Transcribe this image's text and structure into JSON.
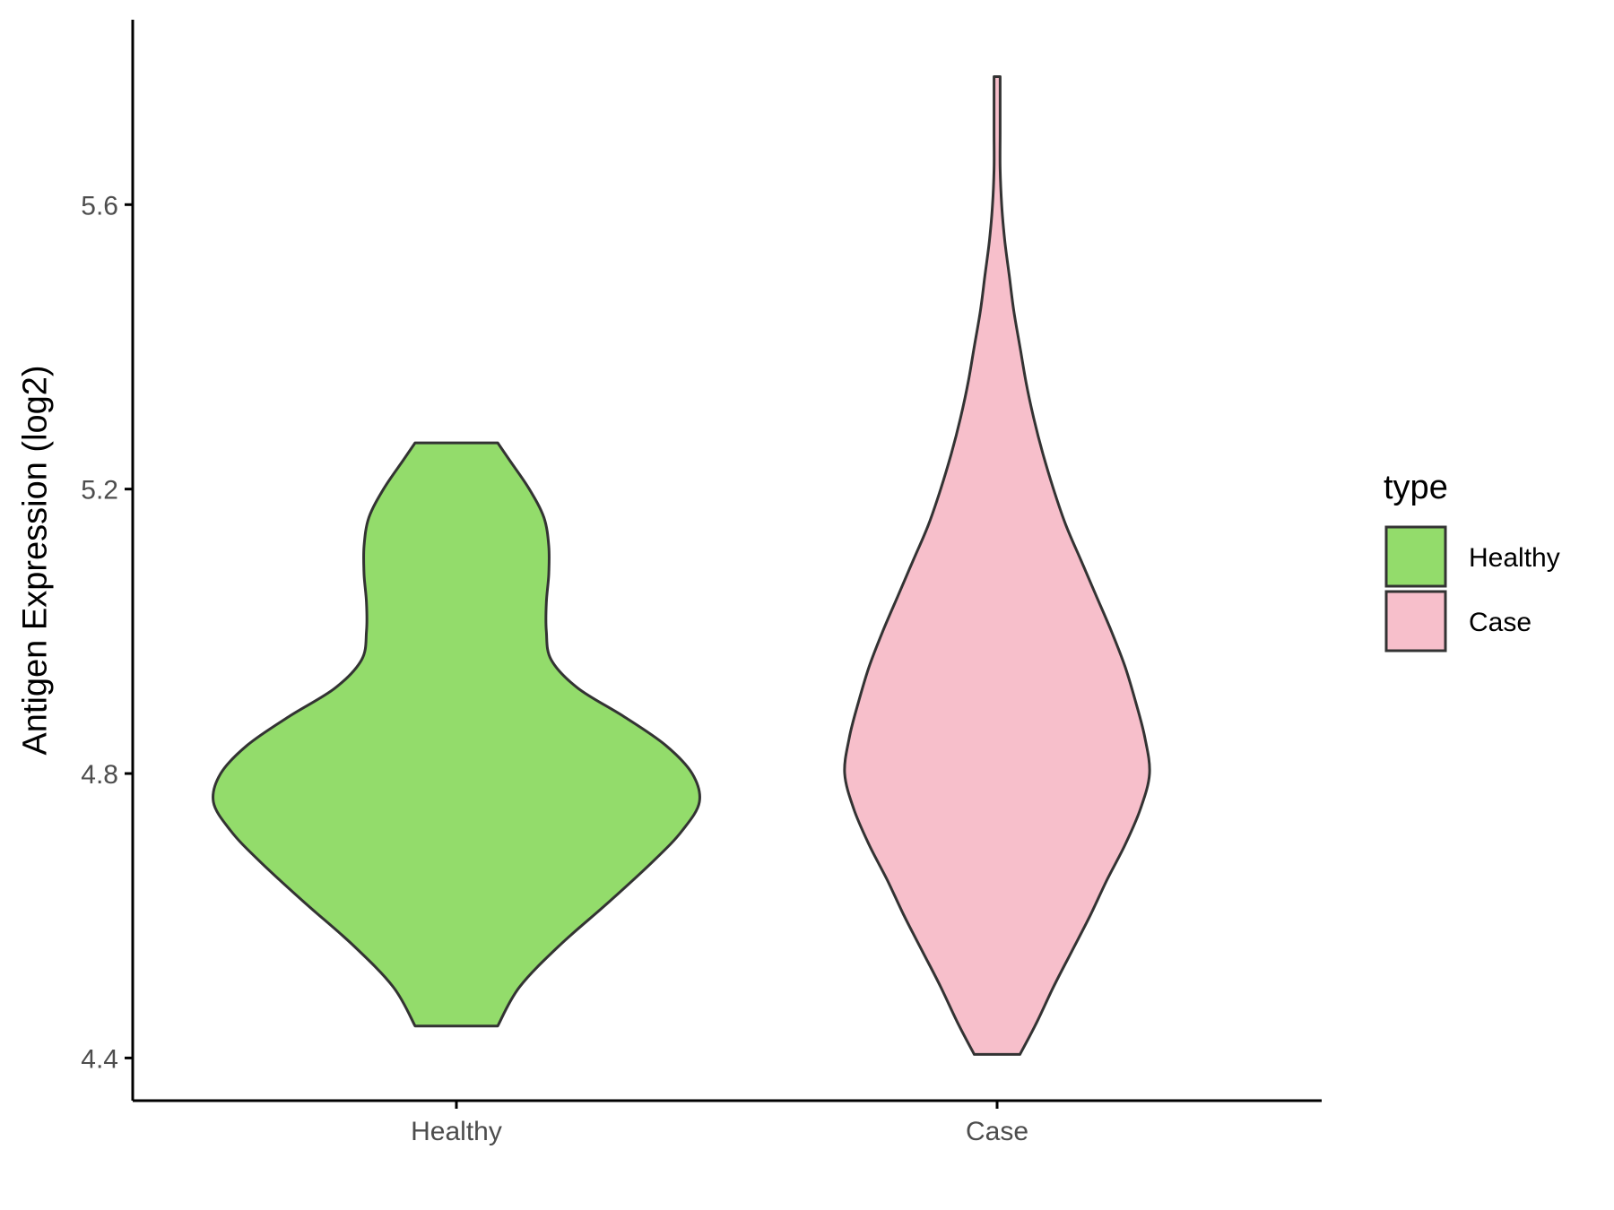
{
  "chart_data": {
    "type": "violin",
    "ylabel": "Antigen Expression (log2)",
    "xlabel": "",
    "categories": [
      "Healthy",
      "Case"
    ],
    "ylim": [
      4.34,
      5.86
    ],
    "yticks": [
      "4.4",
      "4.8",
      "5.2",
      "5.6"
    ],
    "grid": false,
    "legend": {
      "title": "type",
      "placement": "right",
      "entries": [
        {
          "label": "Healthy",
          "color": "#93dc6b"
        },
        {
          "label": "Case",
          "color": "#f7bfcb"
        }
      ]
    },
    "series": [
      {
        "name": "Healthy",
        "color": "#93dc6b",
        "min": 4.445,
        "max": 5.265,
        "density_profile": [
          [
            4.445,
            0.17
          ],
          [
            4.5,
            0.26
          ],
          [
            4.56,
            0.43
          ],
          [
            4.62,
            0.63
          ],
          [
            4.68,
            0.82
          ],
          [
            4.72,
            0.93
          ],
          [
            4.76,
            1.0
          ],
          [
            4.8,
            0.97
          ],
          [
            4.84,
            0.86
          ],
          [
            4.88,
            0.69
          ],
          [
            4.92,
            0.5
          ],
          [
            4.96,
            0.39
          ],
          [
            5.0,
            0.37
          ],
          [
            5.04,
            0.37
          ],
          [
            5.08,
            0.38
          ],
          [
            5.12,
            0.38
          ],
          [
            5.16,
            0.36
          ],
          [
            5.2,
            0.3
          ],
          [
            5.24,
            0.22
          ],
          [
            5.265,
            0.17
          ]
        ]
      },
      {
        "name": "Case",
        "color": "#f7bfcb",
        "min": 4.405,
        "max": 5.78,
        "density_profile": [
          [
            4.405,
            0.15
          ],
          [
            4.45,
            0.26
          ],
          [
            4.5,
            0.37
          ],
          [
            4.55,
            0.49
          ],
          [
            4.6,
            0.61
          ],
          [
            4.65,
            0.72
          ],
          [
            4.7,
            0.84
          ],
          [
            4.75,
            0.94
          ],
          [
            4.8,
            1.0
          ],
          [
            4.85,
            0.97
          ],
          [
            4.9,
            0.91
          ],
          [
            4.95,
            0.84
          ],
          [
            5.0,
            0.75
          ],
          [
            5.05,
            0.65
          ],
          [
            5.1,
            0.55
          ],
          [
            5.15,
            0.45
          ],
          [
            5.2,
            0.37
          ],
          [
            5.25,
            0.3
          ],
          [
            5.3,
            0.24
          ],
          [
            5.35,
            0.19
          ],
          [
            5.4,
            0.15
          ],
          [
            5.45,
            0.11
          ],
          [
            5.5,
            0.08
          ],
          [
            5.55,
            0.05
          ],
          [
            5.6,
            0.03
          ],
          [
            5.65,
            0.02
          ],
          [
            5.7,
            0.02
          ],
          [
            5.75,
            0.02
          ],
          [
            5.78,
            0.02
          ]
        ]
      }
    ]
  }
}
